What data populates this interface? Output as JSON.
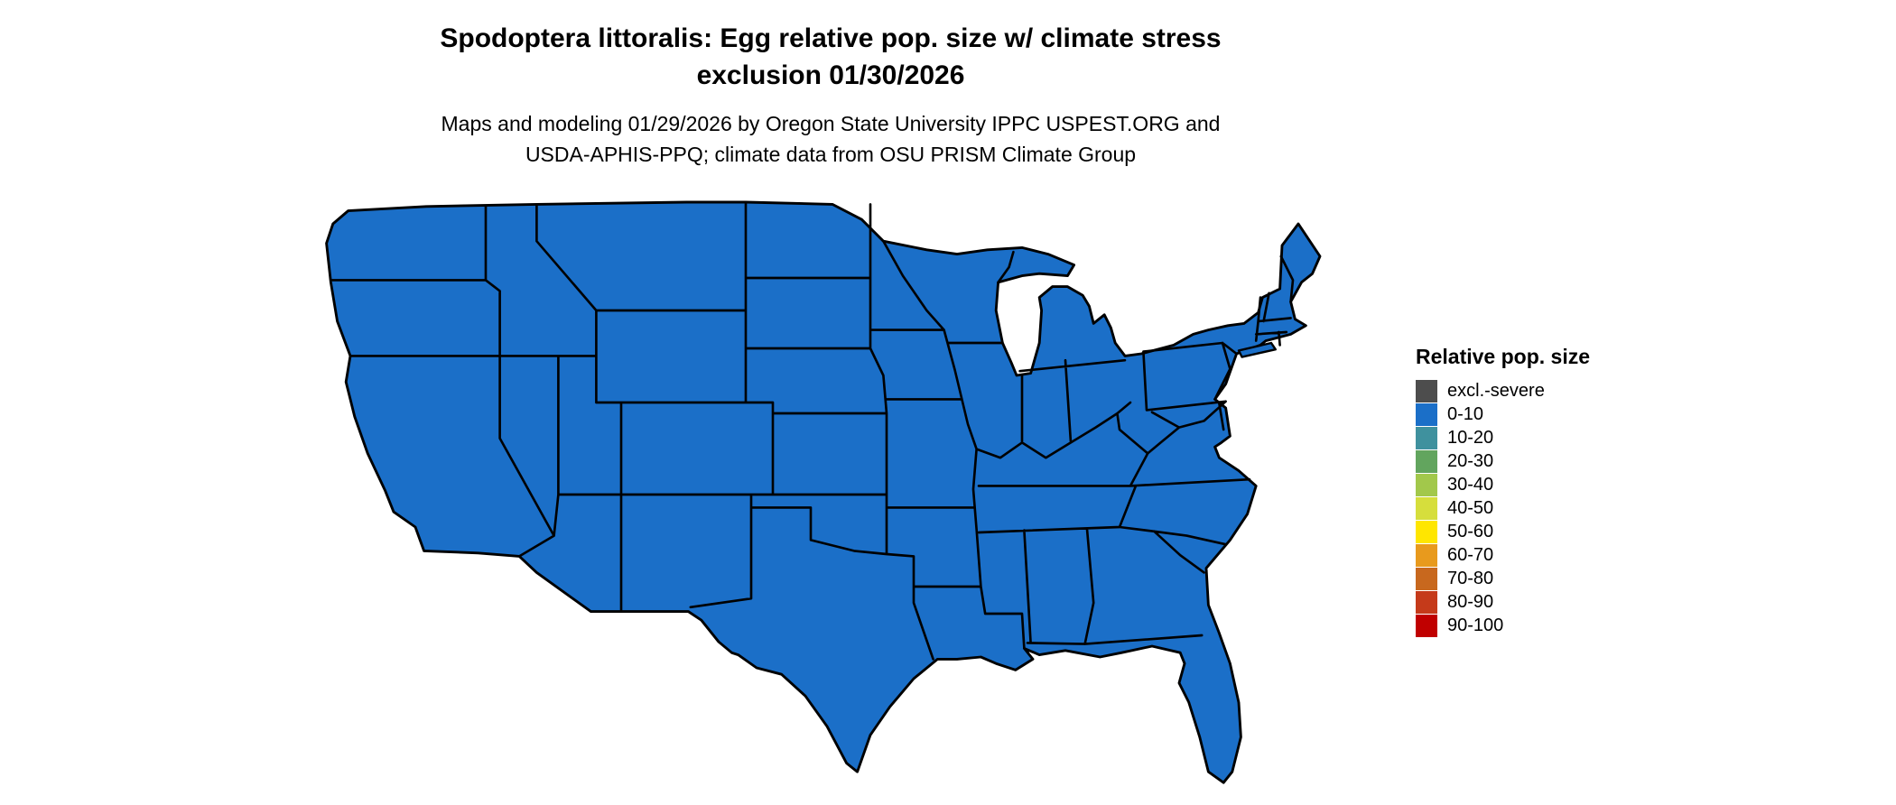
{
  "header": {
    "title_line1": "Spodoptera littoralis: Egg relative pop. size w/ climate stress",
    "title_line2": "exclusion 01/30/2026",
    "subtitle_line1": "Maps and modeling 01/29/2026 by Oregon State University IPPC USPEST.ORG and",
    "subtitle_line2": "USDA-APHIS-PPQ; climate data from OSU PRISM Climate Group"
  },
  "map": {
    "description": "Contiguous United States choropleth; every state shaded in the 0-10 class",
    "fill_color": "#1B6FC8",
    "border_color": "#000000",
    "background_color": "#FFFFFF",
    "uniform_value_class": "0-10"
  },
  "legend": {
    "title": "Relative pop. size",
    "items": [
      {
        "label": "excl.-severe",
        "color": "#4D4D4D"
      },
      {
        "label": "0-10",
        "color": "#1B6FC8"
      },
      {
        "label": "10-20",
        "color": "#3F919E"
      },
      {
        "label": "20-30",
        "color": "#62A55E"
      },
      {
        "label": "30-40",
        "color": "#A2C84B"
      },
      {
        "label": "40-50",
        "color": "#D6DE3C"
      },
      {
        "label": "50-60",
        "color": "#FFE600"
      },
      {
        "label": "60-70",
        "color": "#E89A1D"
      },
      {
        "label": "70-80",
        "color": "#C8681E"
      },
      {
        "label": "80-90",
        "color": "#C53A1A"
      },
      {
        "label": "90-100",
        "color": "#C00000"
      }
    ]
  }
}
